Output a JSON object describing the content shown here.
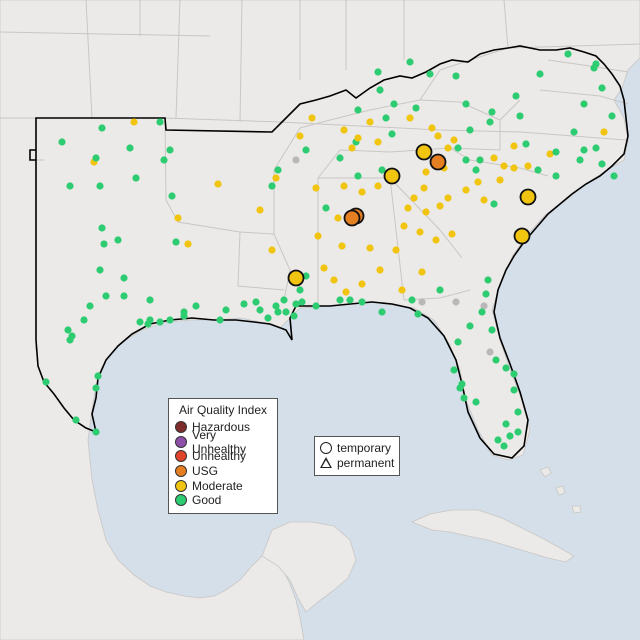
{
  "aqi_legend": {
    "title": "Air Quality Index",
    "levels": [
      {
        "label": "Hazardous",
        "color": "#7e2b2b"
      },
      {
        "label": "Very Unhealthy",
        "color": "#8e4fa8"
      },
      {
        "label": "Unhealthy",
        "color": "#e0442c"
      },
      {
        "label": "USG",
        "color": "#e67e22"
      },
      {
        "label": "Moderate",
        "color": "#f1c40f"
      },
      {
        "label": "Good",
        "color": "#2ecc71"
      }
    ]
  },
  "monitor_type_legend": {
    "items": [
      {
        "label": "temporary",
        "symbol": "circle"
      },
      {
        "label": "permanent",
        "symbol": "triangle"
      }
    ]
  },
  "colors": {
    "water": "#d4dfe9",
    "land": "#eceae8",
    "border": "#c9c6c3",
    "no_data": "#b8b8b8",
    "highlight_outline": "#111111"
  }
}
